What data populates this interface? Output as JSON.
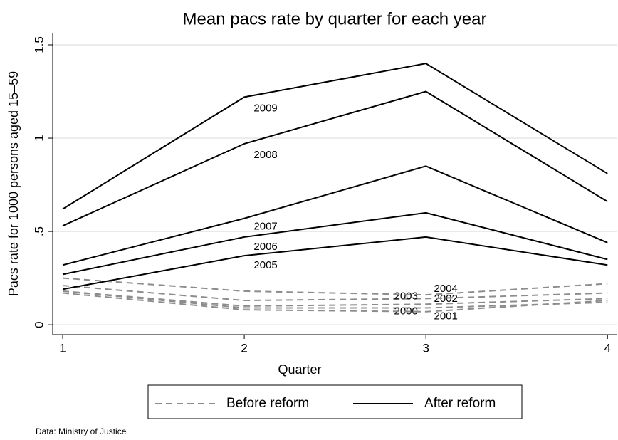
{
  "chart_data": {
    "type": "line",
    "title": "Mean pacs rate by quarter for each year",
    "x_label": "Quarter",
    "y_label": "Pacs rate for 1000 persons aged 15–59",
    "note": "Data: Ministry of Justice",
    "x": [
      1,
      2,
      3,
      4
    ],
    "xlim": [
      0.945,
      4.05
    ],
    "xticks": [
      1,
      2,
      3,
      4
    ],
    "ylim": [
      -0.053,
      1.561
    ],
    "yticks": [
      0,
      {
        "value": 0.5,
        "label": ".5"
      },
      1,
      1.5
    ],
    "grid": true,
    "groups": [
      {
        "name": "Before reform",
        "color": "#8c8c8c",
        "dashed": true,
        "series": [
          {
            "name": "2000",
            "values": [
              0.18,
              0.09,
              0.09,
              0.12
            ]
          },
          {
            "name": "2001",
            "values": [
              0.17,
              0.08,
              0.07,
              0.13
            ]
          },
          {
            "name": "2002",
            "values": [
              0.18,
              0.1,
              0.11,
              0.14
            ]
          },
          {
            "name": "2003",
            "values": [
              0.21,
              0.13,
              0.14,
              0.17
            ]
          },
          {
            "name": "2004",
            "values": [
              0.25,
              0.18,
              0.16,
              0.22
            ]
          }
        ]
      },
      {
        "name": "After reform",
        "color": "#000000",
        "dashed": false,
        "series": [
          {
            "name": "2005",
            "values": [
              0.19,
              0.37,
              0.47,
              0.32
            ]
          },
          {
            "name": "2006",
            "values": [
              0.27,
              0.47,
              0.6,
              0.35
            ]
          },
          {
            "name": "2007",
            "values": [
              0.32,
              0.57,
              0.85,
              0.44
            ]
          },
          {
            "name": "2008",
            "values": [
              0.53,
              0.97,
              1.25,
              0.66
            ]
          },
          {
            "name": "2009",
            "values": [
              0.62,
              1.22,
              1.4,
              0.81
            ]
          }
        ]
      }
    ]
  }
}
